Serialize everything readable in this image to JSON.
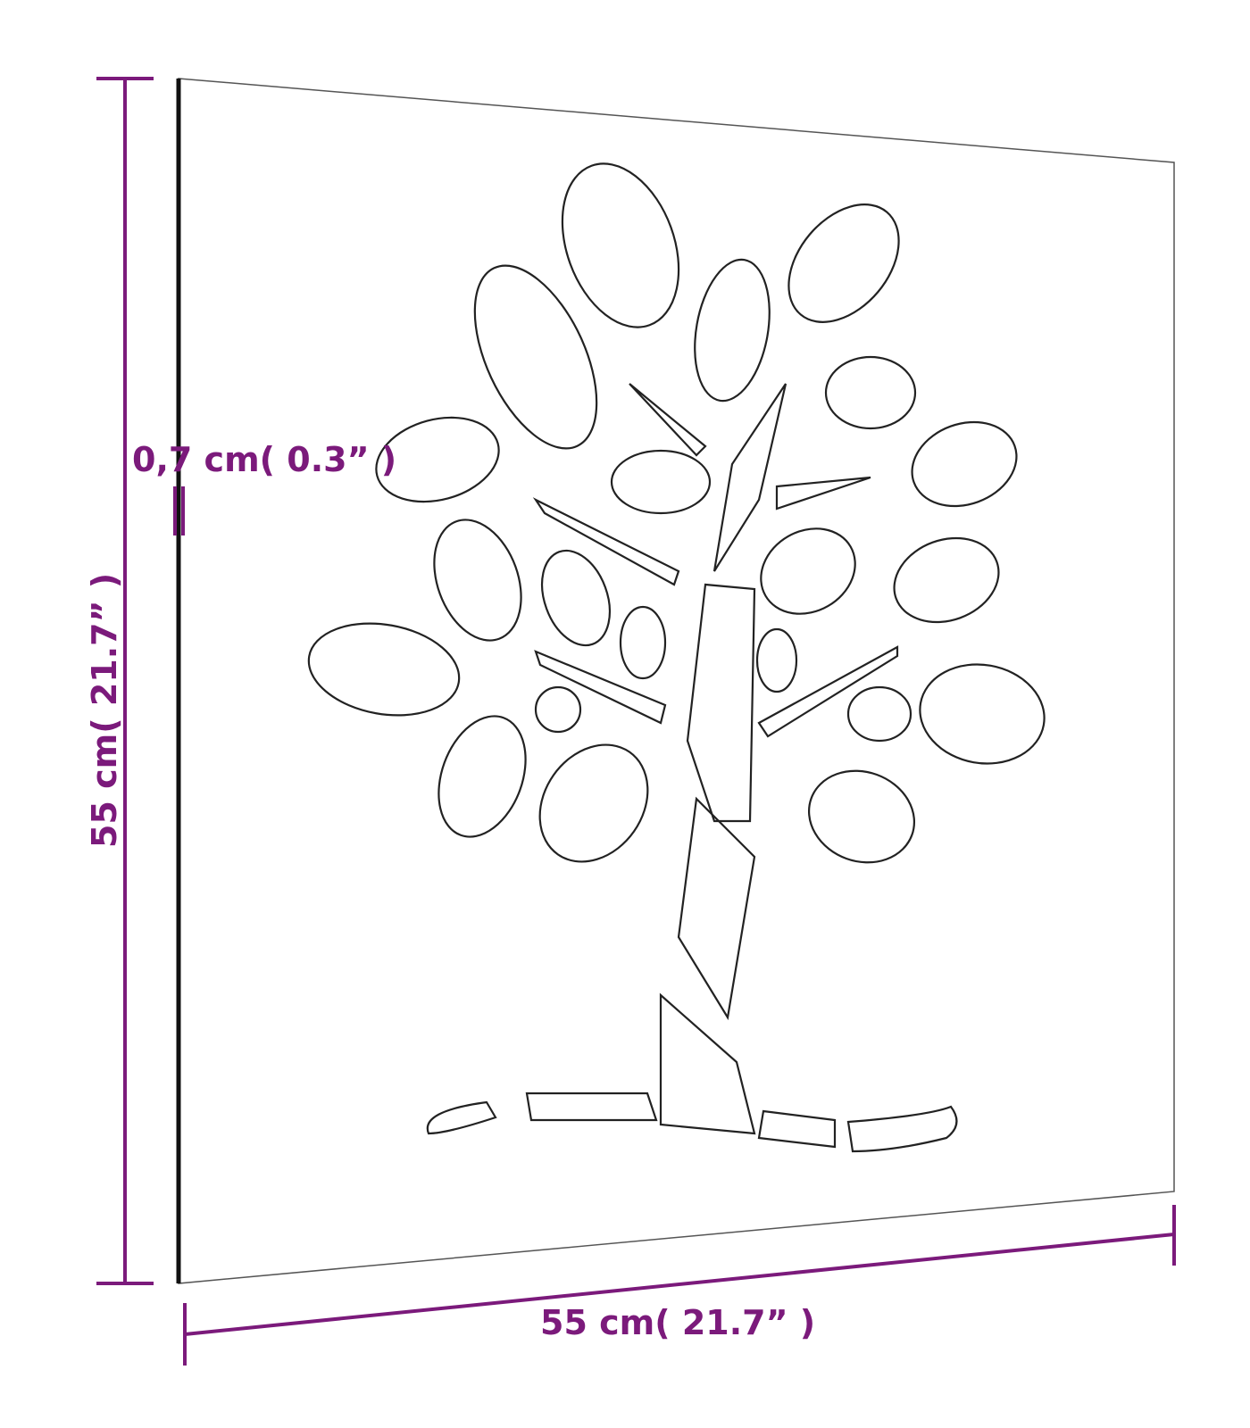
{
  "dimensions": {
    "height_label": "55 cm( 21.7”  )",
    "width_label": "55 cm( 21.7”  )",
    "thickness_label": "0,7 cm( 0.3”  )"
  },
  "colors": {
    "dimension": "#7b1a7b",
    "outline": "#222222"
  },
  "subject": "tree-cutout-wall-panel"
}
